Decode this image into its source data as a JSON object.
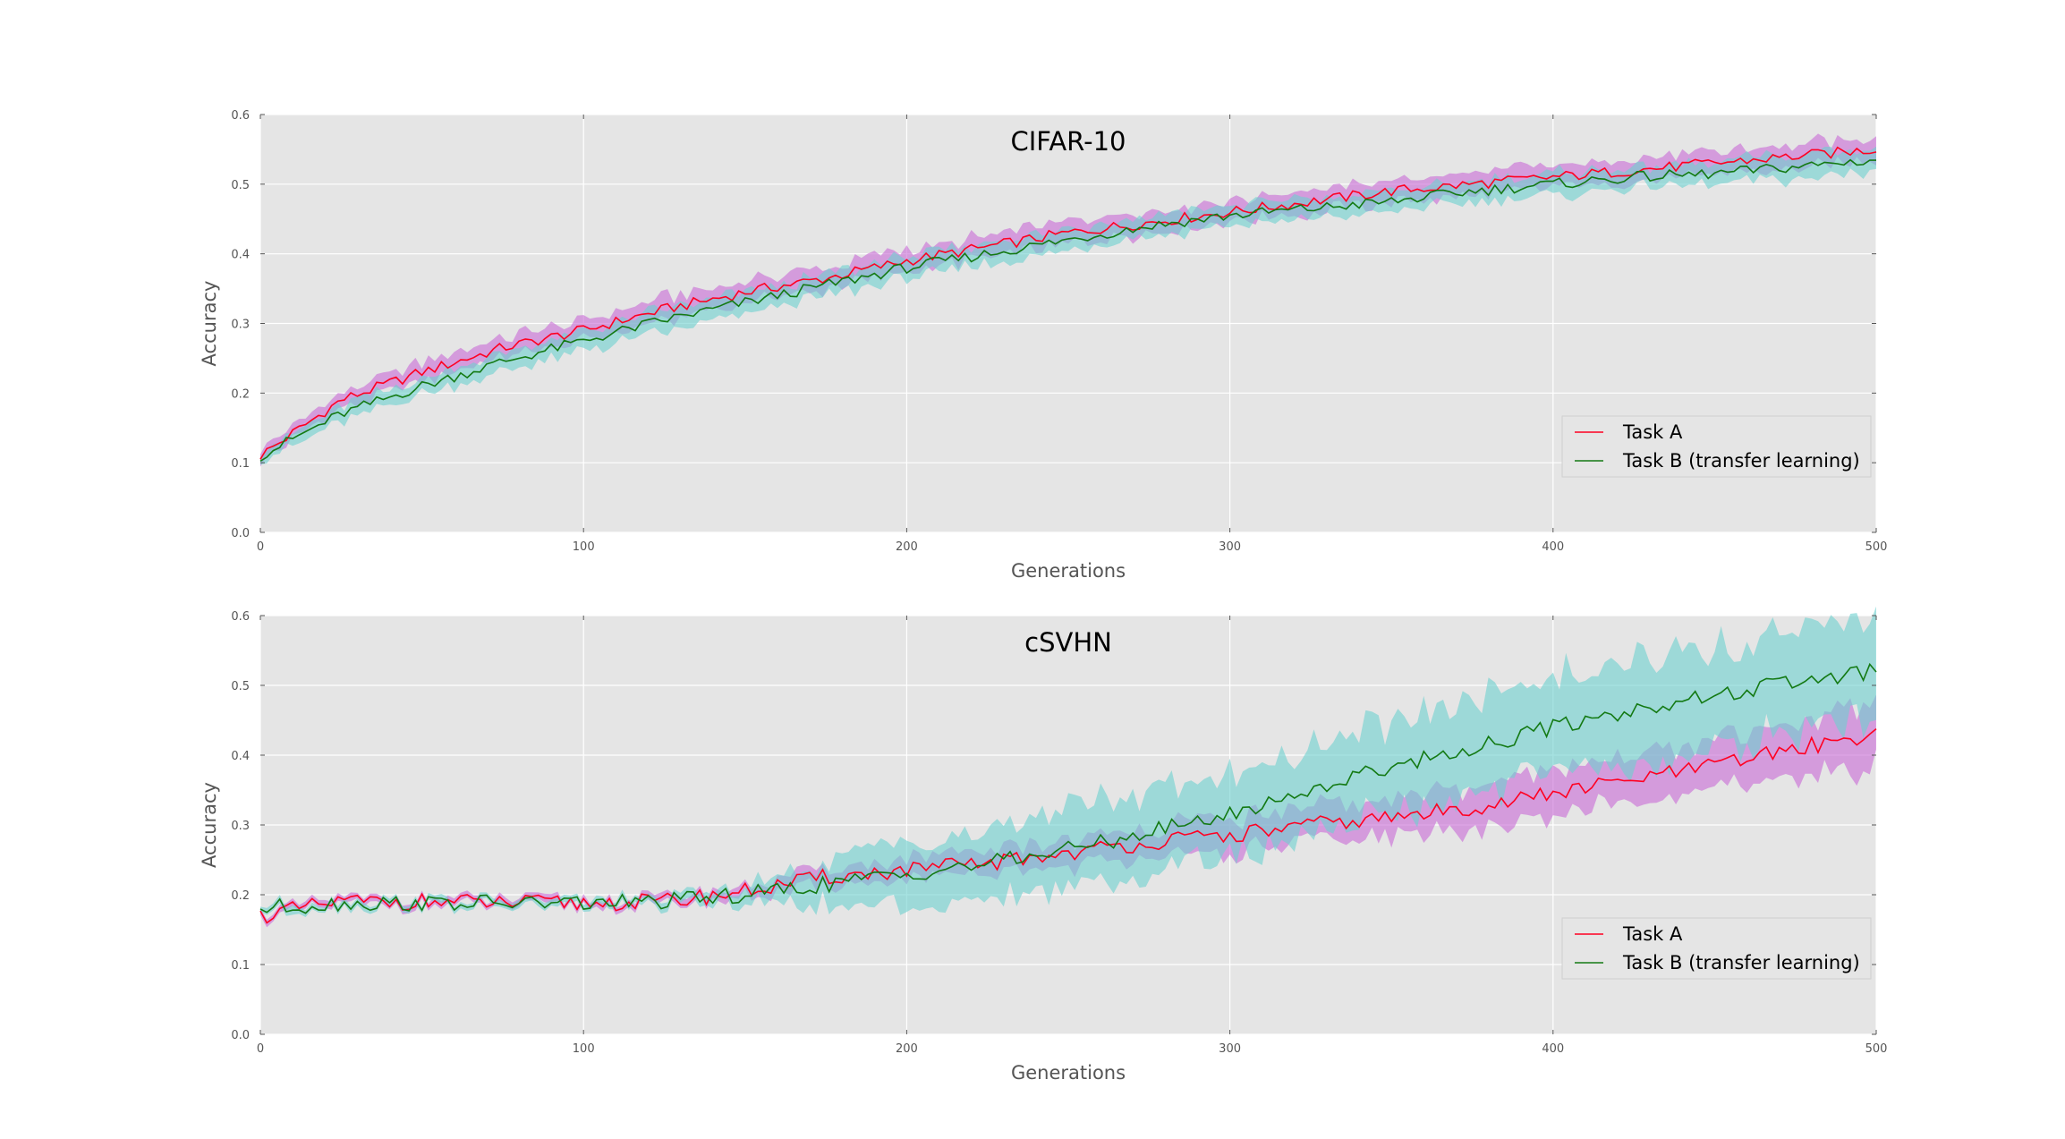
{
  "colors": {
    "background": "#e5e5e5",
    "grid": "#ffffff",
    "task_a_line": "#ff0022",
    "task_b_line": "#147a14",
    "task_a_band": "#c869d6",
    "task_b_band": "#6dd1cf"
  },
  "chart_data": [
    {
      "type": "line",
      "title": "CIFAR-10",
      "xlabel": "Generations",
      "ylabel": "Accuracy",
      "xlim": [
        0,
        500
      ],
      "ylim": [
        0.0,
        0.6
      ],
      "xticks": [
        "0",
        "100",
        "200",
        "300",
        "400",
        "500"
      ],
      "yticks": [
        "0.0",
        "0.1",
        "0.2",
        "0.3",
        "0.4",
        "0.5",
        "0.6"
      ],
      "grid": true,
      "legend_position": "bottom-right",
      "x": [
        0,
        25,
        50,
        75,
        100,
        125,
        150,
        175,
        200,
        225,
        250,
        275,
        300,
        325,
        350,
        375,
        400,
        425,
        450,
        475,
        500
      ],
      "series": [
        {
          "name": "Task A",
          "color_key": "task_a_line",
          "band_color_key": "task_a_band",
          "values": [
            0.11,
            0.19,
            0.23,
            0.265,
            0.29,
            0.32,
            0.345,
            0.365,
            0.39,
            0.41,
            0.43,
            0.445,
            0.46,
            0.475,
            0.49,
            0.5,
            0.51,
            0.52,
            0.53,
            0.54,
            0.55
          ],
          "band_halfwidth": [
            0.008,
            0.012,
            0.013,
            0.014,
            0.015,
            0.016,
            0.016,
            0.016,
            0.016,
            0.016,
            0.016,
            0.016,
            0.016,
            0.016,
            0.016,
            0.016,
            0.016,
            0.016,
            0.016,
            0.017,
            0.018
          ]
        },
        {
          "name": "Task B (transfer learning)",
          "color_key": "task_b_line",
          "band_color_key": "task_b_band",
          "values": [
            0.11,
            0.17,
            0.21,
            0.245,
            0.275,
            0.305,
            0.33,
            0.355,
            0.38,
            0.4,
            0.42,
            0.44,
            0.455,
            0.465,
            0.475,
            0.49,
            0.5,
            0.51,
            0.515,
            0.525,
            0.535
          ],
          "band_halfwidth": [
            0.008,
            0.011,
            0.012,
            0.013,
            0.014,
            0.015,
            0.015,
            0.015,
            0.015,
            0.015,
            0.015,
            0.015,
            0.015,
            0.015,
            0.015,
            0.015,
            0.015,
            0.015,
            0.016,
            0.017,
            0.018
          ]
        }
      ]
    },
    {
      "type": "line",
      "title": "cSVHN",
      "xlabel": "Generations",
      "ylabel": "Accuracy",
      "xlim": [
        0,
        500
      ],
      "ylim": [
        0.0,
        0.6
      ],
      "xticks": [
        "0",
        "100",
        "200",
        "300",
        "400",
        "500"
      ],
      "yticks": [
        "0.0",
        "0.1",
        "0.2",
        "0.3",
        "0.4",
        "0.5",
        "0.6"
      ],
      "grid": true,
      "legend_position": "bottom-right",
      "x": [
        0,
        25,
        50,
        75,
        100,
        125,
        150,
        175,
        200,
        225,
        250,
        275,
        300,
        325,
        350,
        375,
        400,
        425,
        450,
        475,
        500
      ],
      "series": [
        {
          "name": "Task A",
          "color_key": "task_a_line",
          "band_color_key": "task_a_band",
          "values": [
            0.17,
            0.19,
            0.19,
            0.188,
            0.188,
            0.19,
            0.205,
            0.225,
            0.235,
            0.245,
            0.26,
            0.275,
            0.285,
            0.3,
            0.31,
            0.325,
            0.345,
            0.365,
            0.385,
            0.41,
            0.43
          ],
          "band_halfwidth": [
            0.005,
            0.005,
            0.005,
            0.005,
            0.005,
            0.006,
            0.008,
            0.012,
            0.015,
            0.018,
            0.02,
            0.022,
            0.024,
            0.026,
            0.028,
            0.03,
            0.032,
            0.034,
            0.036,
            0.04,
            0.045
          ]
        },
        {
          "name": "Task B (transfer learning)",
          "color_key": "task_b_line",
          "band_color_key": "task_b_band",
          "values": [
            0.18,
            0.188,
            0.188,
            0.188,
            0.188,
            0.19,
            0.2,
            0.215,
            0.23,
            0.245,
            0.265,
            0.29,
            0.315,
            0.35,
            0.385,
            0.41,
            0.44,
            0.465,
            0.485,
            0.505,
            0.52
          ],
          "band_halfwidth": [
            0.005,
            0.005,
            0.005,
            0.005,
            0.005,
            0.006,
            0.012,
            0.03,
            0.045,
            0.05,
            0.055,
            0.058,
            0.06,
            0.062,
            0.064,
            0.066,
            0.068,
            0.07,
            0.072,
            0.074,
            0.076
          ]
        }
      ]
    }
  ]
}
